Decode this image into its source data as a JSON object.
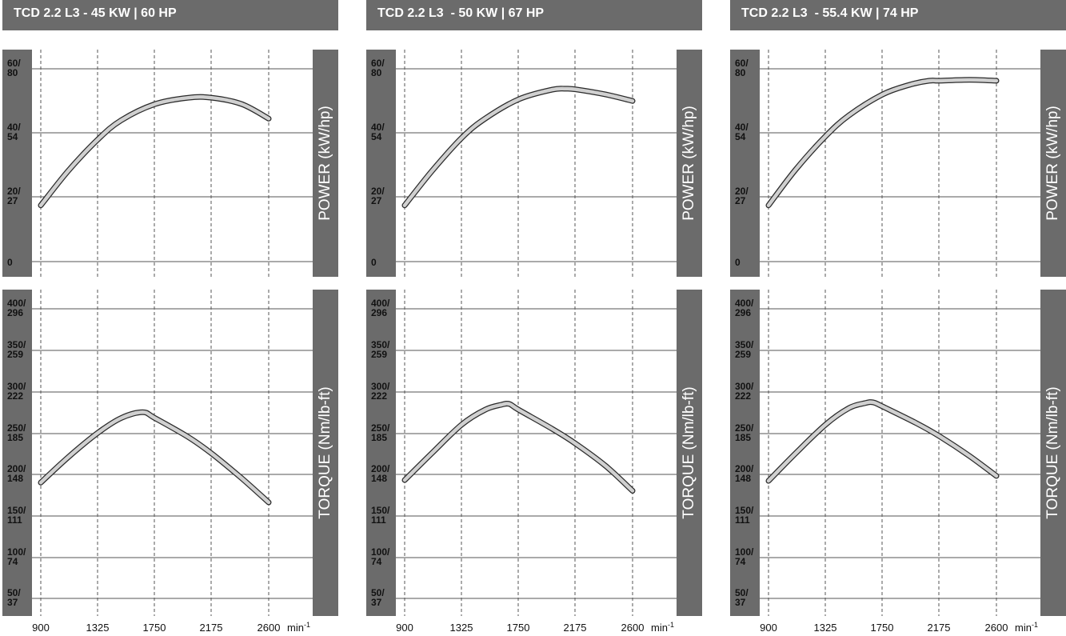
{
  "colors": {
    "bar": "#6b6b6b",
    "curve_fill": "#d0d0d0",
    "curve_edge": "#2a2a2a",
    "grid": "#555555"
  },
  "x_ticks": [
    "900",
    "1325",
    "1750",
    "2175",
    "2600"
  ],
  "x_unit": "min",
  "x_unit_sup": "-1",
  "power_ticks": [
    {
      "top": "60/",
      "bottom": "80"
    },
    {
      "top": "40/",
      "bottom": "54"
    },
    {
      "top": "20/",
      "bottom": "27"
    },
    {
      "top": "0",
      "bottom": ""
    }
  ],
  "torque_ticks": [
    {
      "top": "400/",
      "bottom": "296"
    },
    {
      "top": "350/",
      "bottom": "259"
    },
    {
      "top": "300/",
      "bottom": "222"
    },
    {
      "top": "250/",
      "bottom": "185"
    },
    {
      "top": "200/",
      "bottom": "148"
    },
    {
      "top": "150/",
      "bottom": "111"
    },
    {
      "top": "100/",
      "bottom": "74"
    },
    {
      "top": "50/",
      "bottom": "37"
    }
  ],
  "power_axis_label": "POWER (kW/hp)",
  "torque_axis_label": "TORQUE (Nm/lb-ft)",
  "chart_data": [
    {
      "type": "line",
      "title": "TCD 2.2 L3 - 45 KW | 60 HP",
      "x_ticks": [
        900,
        1325,
        1750,
        2175,
        2600
      ],
      "power": {
        "ylabel": "POWER (kW/hp)",
        "ylim": [
          0,
          60
        ],
        "x": [
          900,
          1100,
          1325,
          1500,
          1750,
          2000,
          2175,
          2400,
          2600
        ],
        "y": [
          17.5,
          28,
          38,
          44,
          49,
          51,
          51,
          49,
          44.5
        ]
      },
      "torque": {
        "ylabel": "TORQUE (Nm/lb-ft)",
        "ylim": [
          50,
          400
        ],
        "x": [
          900,
          1100,
          1325,
          1500,
          1660,
          1750,
          2000,
          2175,
          2400,
          2600
        ],
        "y": [
          190,
          220,
          250,
          268,
          275,
          268,
          245,
          225,
          195,
          166
        ]
      }
    },
    {
      "type": "line",
      "title": "TCD 2.2 L3  - 50 KW | 67 HP",
      "x_ticks": [
        900,
        1325,
        1750,
        2175,
        2600
      ],
      "power": {
        "ylabel": "POWER (kW/hp)",
        "ylim": [
          0,
          60
        ],
        "x": [
          900,
          1100,
          1325,
          1500,
          1750,
          2000,
          2100,
          2175,
          2400,
          2600
        ],
        "y": [
          17.5,
          28,
          38.5,
          44.5,
          50.5,
          53.5,
          53.8,
          53.6,
          52,
          50
        ]
      },
      "torque": {
        "ylabel": "TORQUE (Nm/lb-ft)",
        "ylim": [
          50,
          400
        ],
        "x": [
          900,
          1100,
          1325,
          1500,
          1620,
          1680,
          1750,
          2000,
          2175,
          2400,
          2600
        ],
        "y": [
          193,
          225,
          260,
          278,
          284,
          285,
          278,
          255,
          237,
          210,
          180
        ]
      }
    },
    {
      "type": "line",
      "title": "TCD 2.2 L3  - 55.4 KW | 74 HP",
      "x_ticks": [
        900,
        1325,
        1750,
        2175,
        2600
      ],
      "power": {
        "ylabel": "POWER (kW/hp)",
        "ylim": [
          0,
          60
        ],
        "x": [
          900,
          1100,
          1325,
          1500,
          1750,
          1950,
          2100,
          2175,
          2400,
          2600
        ],
        "y": [
          17.5,
          28.5,
          39,
          45.5,
          52,
          55,
          56.3,
          56.3,
          56.6,
          56.3
        ]
      },
      "torque": {
        "ylabel": "TORQUE (Nm/lb-ft)",
        "ylim": [
          50,
          400
        ],
        "x": [
          900,
          1100,
          1325,
          1500,
          1620,
          1680,
          1750,
          2000,
          2175,
          2400,
          2600
        ],
        "y": [
          192,
          225,
          260,
          280,
          286,
          287,
          282,
          262,
          246,
          222,
          198
        ]
      }
    }
  ]
}
